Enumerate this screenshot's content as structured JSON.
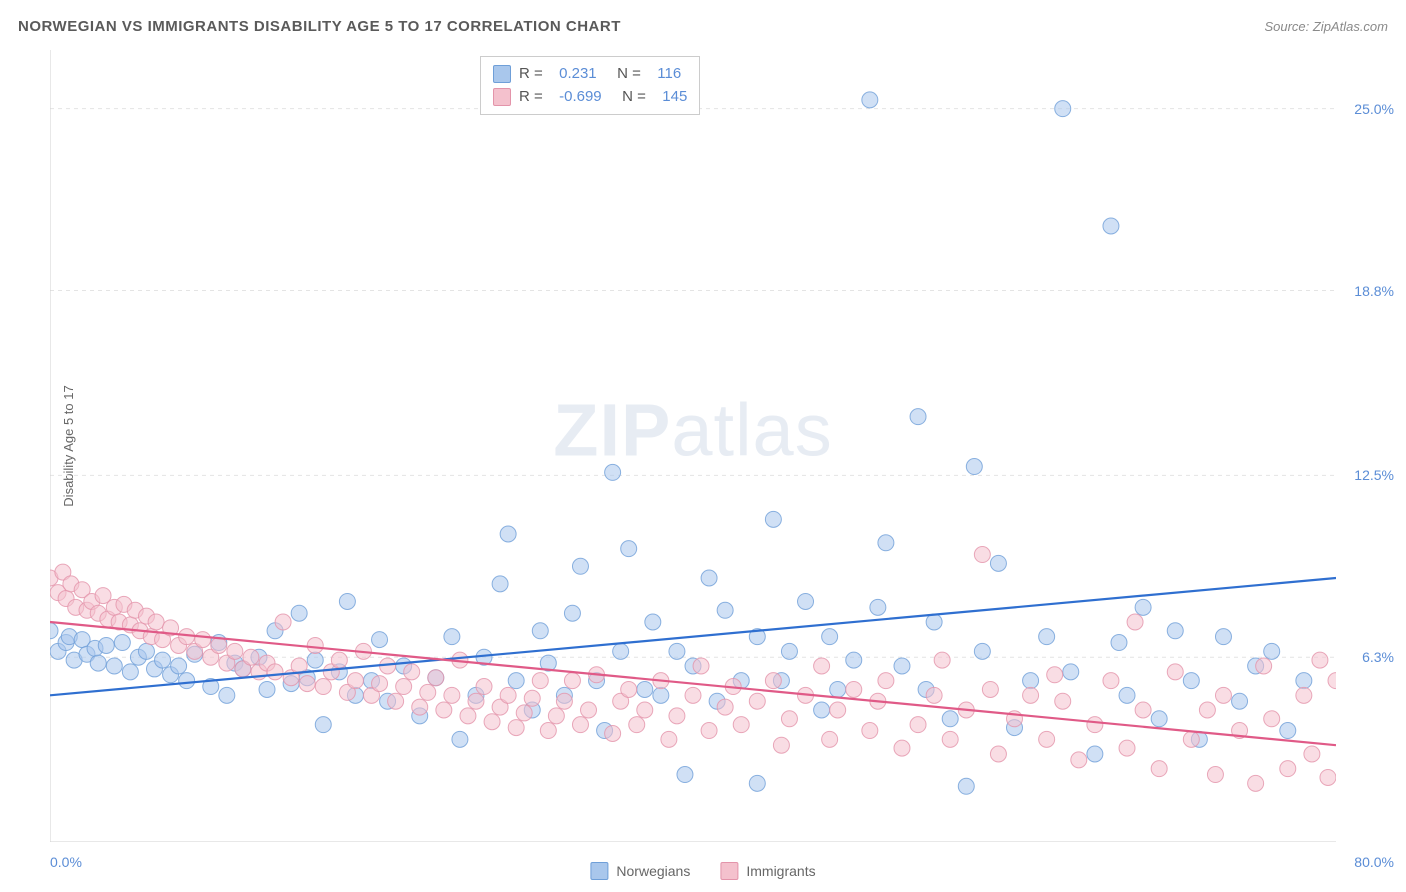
{
  "title": "NORWEGIAN VS IMMIGRANTS DISABILITY AGE 5 TO 17 CORRELATION CHART",
  "source_label": "Source: ",
  "source_name": "ZipAtlas.com",
  "ylabel": "Disability Age 5 to 17",
  "watermark_zip": "ZIP",
  "watermark_atlas": "atlas",
  "chart": {
    "type": "scatter",
    "background_color": "#ffffff",
    "grid_color": "#e4e4e4",
    "axis_color": "#d0d0d0",
    "marker_radius": 8,
    "marker_opacity": 0.55,
    "trend_line_width": 2.2,
    "xlim": [
      0,
      80
    ],
    "ylim": [
      0,
      27
    ],
    "x_ticks": [
      0,
      16,
      32,
      48,
      64,
      80
    ],
    "x_tick_labels_shown": {
      "0": "0.0%",
      "80": "80.0%"
    },
    "y_grid": [
      6.3,
      12.5,
      18.8,
      25.0
    ],
    "y_tick_labels": [
      "6.3%",
      "12.5%",
      "18.8%",
      "25.0%"
    ],
    "tick_label_color": "#5b8dd6",
    "tick_label_fontsize": 14,
    "series": [
      {
        "name": "Norwegians",
        "fill_color": "#a9c7ec",
        "stroke_color": "#6f9fd8",
        "line_color": "#2f6fd0",
        "r_label": "R =",
        "r_value": "0.231",
        "n_label": "N =",
        "n_value": "116",
        "trend": {
          "x1": 0,
          "y1": 5.0,
          "x2": 80,
          "y2": 9.0
        },
        "points": [
          [
            0,
            7.2
          ],
          [
            0.5,
            6.5
          ],
          [
            1,
            6.8
          ],
          [
            1.2,
            7.0
          ],
          [
            1.5,
            6.2
          ],
          [
            2,
            6.9
          ],
          [
            2.3,
            6.4
          ],
          [
            2.8,
            6.6
          ],
          [
            3,
            6.1
          ],
          [
            3.5,
            6.7
          ],
          [
            4,
            6.0
          ],
          [
            4.5,
            6.8
          ],
          [
            5,
            5.8
          ],
          [
            5.5,
            6.3
          ],
          [
            6,
            6.5
          ],
          [
            6.5,
            5.9
          ],
          [
            7,
            6.2
          ],
          [
            7.5,
            5.7
          ],
          [
            8,
            6.0
          ],
          [
            8.5,
            5.5
          ],
          [
            9,
            6.4
          ],
          [
            10,
            5.3
          ],
          [
            10.5,
            6.8
          ],
          [
            11,
            5.0
          ],
          [
            11.5,
            6.1
          ],
          [
            12,
            5.9
          ],
          [
            13,
            6.3
          ],
          [
            13.5,
            5.2
          ],
          [
            14,
            7.2
          ],
          [
            15,
            5.4
          ],
          [
            15.5,
            7.8
          ],
          [
            16,
            5.6
          ],
          [
            16.5,
            6.2
          ],
          [
            17,
            4.0
          ],
          [
            18,
            5.8
          ],
          [
            18.5,
            8.2
          ],
          [
            19,
            5.0
          ],
          [
            20,
            5.5
          ],
          [
            20.5,
            6.9
          ],
          [
            21,
            4.8
          ],
          [
            22,
            6.0
          ],
          [
            23,
            4.3
          ],
          [
            24,
            5.6
          ],
          [
            25,
            7.0
          ],
          [
            25.5,
            3.5
          ],
          [
            26.5,
            5.0
          ],
          [
            27,
            6.3
          ],
          [
            28,
            8.8
          ],
          [
            28.5,
            10.5
          ],
          [
            29,
            5.5
          ],
          [
            30,
            4.5
          ],
          [
            30.5,
            7.2
          ],
          [
            31,
            6.1
          ],
          [
            32,
            5.0
          ],
          [
            32.5,
            7.8
          ],
          [
            33,
            9.4
          ],
          [
            34,
            5.5
          ],
          [
            34.5,
            3.8
          ],
          [
            35,
            12.6
          ],
          [
            35.5,
            6.5
          ],
          [
            36,
            10.0
          ],
          [
            37,
            5.2
          ],
          [
            37.5,
            7.5
          ],
          [
            38,
            5.0
          ],
          [
            39,
            6.5
          ],
          [
            39.5,
            2.3
          ],
          [
            40,
            6.0
          ],
          [
            41,
            9.0
          ],
          [
            41.5,
            4.8
          ],
          [
            42,
            7.9
          ],
          [
            43,
            5.5
          ],
          [
            44,
            7.0
          ],
          [
            44,
            2.0
          ],
          [
            45,
            11.0
          ],
          [
            45.5,
            5.5
          ],
          [
            46,
            6.5
          ],
          [
            47,
            8.2
          ],
          [
            48,
            4.5
          ],
          [
            48.5,
            7.0
          ],
          [
            49,
            5.2
          ],
          [
            50,
            6.2
          ],
          [
            51,
            25.3
          ],
          [
            51.5,
            8.0
          ],
          [
            52,
            10.2
          ],
          [
            53,
            6.0
          ],
          [
            54,
            14.5
          ],
          [
            54.5,
            5.2
          ],
          [
            55,
            7.5
          ],
          [
            56,
            4.2
          ],
          [
            57,
            1.9
          ],
          [
            57.5,
            12.8
          ],
          [
            58,
            6.5
          ],
          [
            59,
            9.5
          ],
          [
            60,
            3.9
          ],
          [
            61,
            5.5
          ],
          [
            62,
            7.0
          ],
          [
            63,
            25.0
          ],
          [
            63.5,
            5.8
          ],
          [
            65,
            3.0
          ],
          [
            66,
            21.0
          ],
          [
            66.5,
            6.8
          ],
          [
            67,
            5.0
          ],
          [
            68,
            8.0
          ],
          [
            69,
            4.2
          ],
          [
            70,
            7.2
          ],
          [
            71,
            5.5
          ],
          [
            71.5,
            3.5
          ],
          [
            73,
            7.0
          ],
          [
            74,
            4.8
          ],
          [
            75,
            6.0
          ],
          [
            76,
            6.5
          ],
          [
            77,
            3.8
          ],
          [
            78,
            5.5
          ]
        ]
      },
      {
        "name": "Immigrants",
        "fill_color": "#f4c1cd",
        "stroke_color": "#e394aa",
        "line_color": "#e05a87",
        "r_label": "R =",
        "r_value": "-0.699",
        "n_label": "N =",
        "n_value": "145",
        "trend": {
          "x1": 0,
          "y1": 7.5,
          "x2": 80,
          "y2": 3.3
        },
        "points": [
          [
            0,
            9.0
          ],
          [
            0.5,
            8.5
          ],
          [
            0.8,
            9.2
          ],
          [
            1,
            8.3
          ],
          [
            1.3,
            8.8
          ],
          [
            1.6,
            8.0
          ],
          [
            2,
            8.6
          ],
          [
            2.3,
            7.9
          ],
          [
            2.6,
            8.2
          ],
          [
            3,
            7.8
          ],
          [
            3.3,
            8.4
          ],
          [
            3.6,
            7.6
          ],
          [
            4,
            8.0
          ],
          [
            4.3,
            7.5
          ],
          [
            4.6,
            8.1
          ],
          [
            5,
            7.4
          ],
          [
            5.3,
            7.9
          ],
          [
            5.6,
            7.2
          ],
          [
            6,
            7.7
          ],
          [
            6.3,
            7.0
          ],
          [
            6.6,
            7.5
          ],
          [
            7,
            6.9
          ],
          [
            7.5,
            7.3
          ],
          [
            8,
            6.7
          ],
          [
            8.5,
            7.0
          ],
          [
            9,
            6.5
          ],
          [
            9.5,
            6.9
          ],
          [
            10,
            6.3
          ],
          [
            10.5,
            6.7
          ],
          [
            11,
            6.1
          ],
          [
            11.5,
            6.5
          ],
          [
            12,
            5.9
          ],
          [
            12.5,
            6.3
          ],
          [
            13,
            5.8
          ],
          [
            13.5,
            6.1
          ],
          [
            14,
            5.8
          ],
          [
            14.5,
            7.5
          ],
          [
            15,
            5.6
          ],
          [
            15.5,
            6.0
          ],
          [
            16,
            5.4
          ],
          [
            16.5,
            6.7
          ],
          [
            17,
            5.3
          ],
          [
            17.5,
            5.8
          ],
          [
            18,
            6.2
          ],
          [
            18.5,
            5.1
          ],
          [
            19,
            5.5
          ],
          [
            19.5,
            6.5
          ],
          [
            20,
            5.0
          ],
          [
            20.5,
            5.4
          ],
          [
            21,
            6.0
          ],
          [
            21.5,
            4.8
          ],
          [
            22,
            5.3
          ],
          [
            22.5,
            5.8
          ],
          [
            23,
            4.6
          ],
          [
            23.5,
            5.1
          ],
          [
            24,
            5.6
          ],
          [
            24.5,
            4.5
          ],
          [
            25,
            5.0
          ],
          [
            25.5,
            6.2
          ],
          [
            26,
            4.3
          ],
          [
            26.5,
            4.8
          ],
          [
            27,
            5.3
          ],
          [
            27.5,
            4.1
          ],
          [
            28,
            4.6
          ],
          [
            28.5,
            5.0
          ],
          [
            29,
            3.9
          ],
          [
            29.5,
            4.4
          ],
          [
            30,
            4.9
          ],
          [
            30.5,
            5.5
          ],
          [
            31,
            3.8
          ],
          [
            31.5,
            4.3
          ],
          [
            32,
            4.8
          ],
          [
            32.5,
            5.5
          ],
          [
            33,
            4.0
          ],
          [
            33.5,
            4.5
          ],
          [
            34,
            5.7
          ],
          [
            35,
            3.7
          ],
          [
            35.5,
            4.8
          ],
          [
            36,
            5.2
          ],
          [
            36.5,
            4.0
          ],
          [
            37,
            4.5
          ],
          [
            38,
            5.5
          ],
          [
            38.5,
            3.5
          ],
          [
            39,
            4.3
          ],
          [
            40,
            5.0
          ],
          [
            40.5,
            6.0
          ],
          [
            41,
            3.8
          ],
          [
            42,
            4.6
          ],
          [
            42.5,
            5.3
          ],
          [
            43,
            4.0
          ],
          [
            44,
            4.8
          ],
          [
            45,
            5.5
          ],
          [
            45.5,
            3.3
          ],
          [
            46,
            4.2
          ],
          [
            47,
            5.0
          ],
          [
            48,
            6.0
          ],
          [
            48.5,
            3.5
          ],
          [
            49,
            4.5
          ],
          [
            50,
            5.2
          ],
          [
            51,
            3.8
          ],
          [
            51.5,
            4.8
          ],
          [
            52,
            5.5
          ],
          [
            53,
            3.2
          ],
          [
            54,
            4.0
          ],
          [
            55,
            5.0
          ],
          [
            55.5,
            6.2
          ],
          [
            56,
            3.5
          ],
          [
            57,
            4.5
          ],
          [
            58,
            9.8
          ],
          [
            58.5,
            5.2
          ],
          [
            59,
            3.0
          ],
          [
            60,
            4.2
          ],
          [
            61,
            5.0
          ],
          [
            62,
            3.5
          ],
          [
            62.5,
            5.7
          ],
          [
            63,
            4.8
          ],
          [
            64,
            2.8
          ],
          [
            65,
            4.0
          ],
          [
            66,
            5.5
          ],
          [
            67,
            3.2
          ],
          [
            67.5,
            7.5
          ],
          [
            68,
            4.5
          ],
          [
            69,
            2.5
          ],
          [
            70,
            5.8
          ],
          [
            71,
            3.5
          ],
          [
            72,
            4.5
          ],
          [
            72.5,
            2.3
          ],
          [
            73,
            5.0
          ],
          [
            74,
            3.8
          ],
          [
            75,
            2.0
          ],
          [
            75.5,
            6.0
          ],
          [
            76,
            4.2
          ],
          [
            77,
            2.5
          ],
          [
            78,
            5.0
          ],
          [
            78.5,
            3.0
          ],
          [
            79,
            6.2
          ],
          [
            79.5,
            2.2
          ],
          [
            80,
            5.5
          ]
        ]
      }
    ]
  },
  "bottom_legend": [
    {
      "label": "Norwegians",
      "fill": "#a9c7ec",
      "border": "#6f9fd8"
    },
    {
      "label": "Immigrants",
      "fill": "#f4c1cd",
      "border": "#e394aa"
    }
  ]
}
